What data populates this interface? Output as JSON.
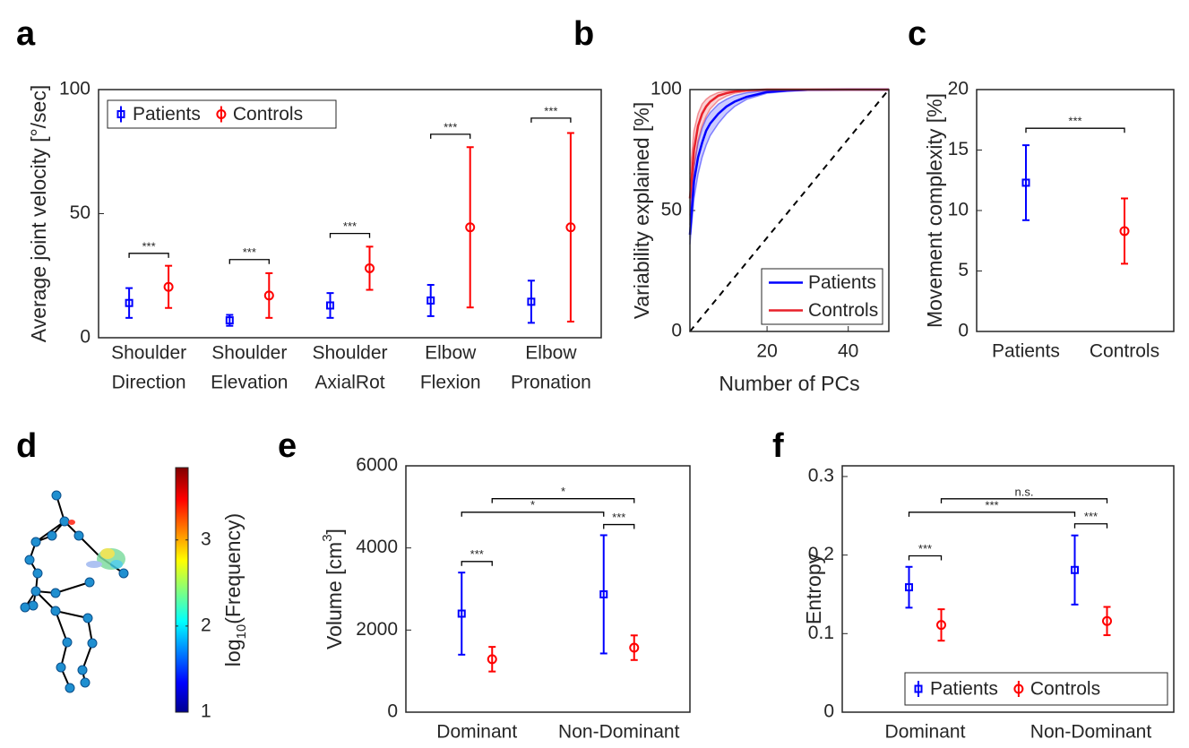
{
  "chart_data": [
    {
      "panel_label": "a",
      "type": "errorbar",
      "ylabel": "Average joint velocity [°/sec]",
      "categories": [
        [
          "Shoulder",
          "Direction"
        ],
        [
          "Shoulder",
          "Elevation"
        ],
        [
          "Shoulder",
          "AxialRot"
        ],
        [
          "Elbow",
          "Flexion"
        ],
        [
          "Elbow",
          "Pronation"
        ]
      ],
      "series": [
        {
          "name": "Patients",
          "color": "#0000ff",
          "marker": "square",
          "values": [
            14,
            7,
            13,
            15,
            14.5
          ],
          "errors": [
            6,
            2.2,
            5,
            6.3,
            8.5
          ]
        },
        {
          "name": "Controls",
          "color": "#ff0000",
          "marker": "circle",
          "values": [
            20.5,
            17,
            28,
            44.5,
            44.5
          ],
          "errors": [
            8.5,
            9,
            8.7,
            32.3,
            38
          ]
        }
      ],
      "ylim": [
        0,
        100
      ],
      "yticks": [
        0,
        50,
        100
      ],
      "legend": "upper left",
      "brackets": [
        {
          "y": 34,
          "label": "***"
        },
        {
          "y": 31.5,
          "label": "***"
        },
        {
          "y": 42,
          "label": "***"
        },
        {
          "y": 82,
          "label": "***"
        },
        {
          "y": 88.5,
          "label": "***"
        }
      ]
    },
    {
      "panel_label": "b",
      "type": "line",
      "ylabel": "Variability explained [%]",
      "xlabel": "Number of PCs",
      "x": [
        1,
        2,
        3,
        4,
        5,
        6,
        8,
        10,
        12,
        15,
        20,
        25,
        30,
        40,
        50
      ],
      "series": [
        {
          "name": "Patients",
          "color": "#0000ff",
          "values": [
            40,
            62,
            72,
            78,
            83,
            86,
            90,
            93,
            95,
            97,
            99,
            99.6,
            99.9,
            100,
            100
          ],
          "lower": [
            36,
            55,
            65,
            72,
            77,
            81,
            86,
            90,
            93,
            96,
            98.5,
            99.3,
            99.7,
            100,
            100
          ],
          "upper": [
            44,
            68,
            78,
            84,
            88,
            90.5,
            94,
            96,
            97.5,
            98.7,
            99.6,
            99.9,
            100,
            100,
            100
          ]
        },
        {
          "name": "Controls",
          "color": "#e8202a",
          "values": [
            55,
            75,
            85,
            90,
            93,
            95,
            97.5,
            98.5,
            99.2,
            99.7,
            100,
            100,
            100,
            100,
            100
          ],
          "lower": [
            48,
            68,
            79,
            85,
            89,
            92,
            95.5,
            97.3,
            98.5,
            99.3,
            99.8,
            100,
            100,
            100,
            100
          ],
          "upper": [
            65,
            83,
            90,
            94,
            96,
            97.3,
            98.8,
            99.4,
            99.7,
            99.9,
            100,
            100,
            100,
            100,
            100
          ]
        }
      ],
      "xlim": [
        1,
        50
      ],
      "xticks": [
        20,
        40
      ],
      "ylim": [
        0,
        100
      ],
      "yticks": [
        0,
        50,
        100
      ],
      "legend": "lower right"
    },
    {
      "panel_label": "c",
      "type": "errorbar",
      "ylabel": "Movement complexity [%]",
      "categories": [
        "Patients",
        "Controls"
      ],
      "values": [
        12.3,
        8.3
      ],
      "errors": [
        3.1,
        2.7
      ],
      "colors": [
        "#0000ff",
        "#ff0000"
      ],
      "markers": [
        "square",
        "circle"
      ],
      "ylim": [
        0,
        20
      ],
      "yticks": [
        0,
        5,
        10,
        15,
        20
      ],
      "brackets": [
        {
          "y": 16.8,
          "label": "***"
        }
      ]
    },
    {
      "panel_label": "d",
      "type": "colorbar",
      "colorbar_label": [
        "log",
        "10",
        "(Frequency)"
      ],
      "clim": [
        1,
        3.84
      ],
      "cticks": [
        1,
        2,
        3
      ]
    },
    {
      "panel_label": "e",
      "type": "errorbar",
      "ylabel": [
        "Volume [cm",
        "3",
        "]"
      ],
      "categories": [
        "Dominant",
        "Non-Dominant"
      ],
      "series": [
        {
          "name": "Patients",
          "color": "#0000ff",
          "marker": "square",
          "values": [
            2400,
            2870
          ],
          "errors": [
            1000,
            1440
          ]
        },
        {
          "name": "Controls",
          "color": "#ff0000",
          "marker": "circle",
          "values": [
            1290,
            1570
          ],
          "errors": [
            300,
            300
          ]
        }
      ],
      "ylim": [
        0,
        6000
      ],
      "yticks": [
        0,
        2000,
        4000,
        6000
      ],
      "brackets": [
        {
          "y": 3670,
          "label": "***"
        },
        {
          "y": 4870,
          "label": "*"
        },
        {
          "y": 4570,
          "label": "***"
        },
        {
          "y": 5200,
          "label": "*"
        }
      ]
    },
    {
      "panel_label": "f",
      "type": "errorbar",
      "ylabel": "Entropy",
      "categories": [
        "Dominant",
        "Non-Dominant"
      ],
      "series": [
        {
          "name": "Patients",
          "color": "#0000ff",
          "marker": "square",
          "values": [
            0.159,
            0.181
          ],
          "errors": [
            0.026,
            0.044
          ]
        },
        {
          "name": "Controls",
          "color": "#ff0000",
          "marker": "circle",
          "values": [
            0.111,
            0.116
          ],
          "errors": [
            0.02,
            0.018
          ]
        }
      ],
      "ylim": [
        0,
        0.3136
      ],
      "yticks": [
        0,
        0.1,
        0.2,
        0.3
      ],
      "legend": "lower right",
      "brackets": [
        {
          "y": 0.199,
          "label": "***"
        },
        {
          "y": 0.2545,
          "label": "***"
        },
        {
          "y": 0.2398,
          "label": "***"
        },
        {
          "y": 0.2716,
          "label": "n.s."
        }
      ]
    }
  ]
}
